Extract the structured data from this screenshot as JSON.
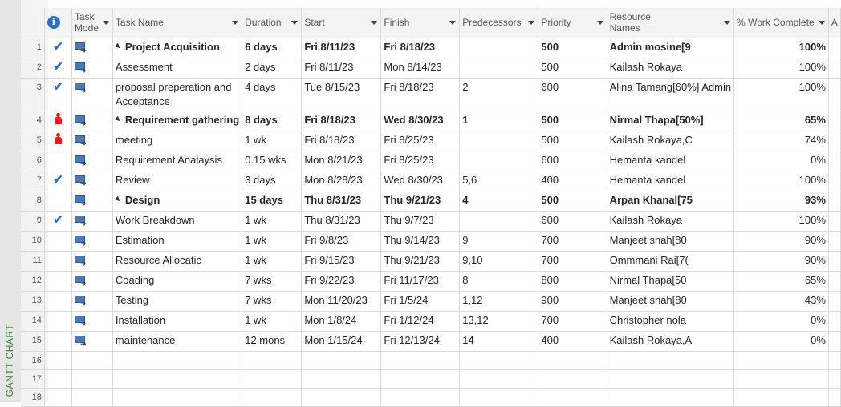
{
  "side_label": "GANTT CHART",
  "headers": {
    "indicator_icon": "info-icon",
    "mode": "Task Mode",
    "name": "Task Name",
    "duration": "Duration",
    "start": "Start",
    "finish": "Finish",
    "predecessors": "Predecessors",
    "priority": "Priority",
    "resources": "Resource Names",
    "work": "% Work Complete",
    "next": "A"
  },
  "rows": [
    {
      "id": "1",
      "indicator": "check",
      "name": "Project Acquisition",
      "level": 0,
      "summary": true,
      "duration": "6 days",
      "start": "Fri 8/11/23",
      "finish": "Fri 8/18/23",
      "pred": "",
      "priority": "500",
      "res": "Admin mosine[9",
      "work": "100%"
    },
    {
      "id": "2",
      "indicator": "check",
      "name": "Assessment",
      "level": 1,
      "summary": false,
      "duration": "2 days",
      "start": "Fri 8/11/23",
      "finish": "Mon 8/14/23",
      "pred": "",
      "priority": "500",
      "res": "Kailash Rokaya",
      "work": "100%"
    },
    {
      "id": "3",
      "indicator": "check",
      "name": "proposal preperation and Acceptance",
      "level": 1,
      "summary": false,
      "duration": "4 days",
      "start": "Tue 8/15/23",
      "finish": "Fri 8/18/23",
      "pred": "2",
      "priority": "600",
      "res": "Alina Tamang[60%] Admin",
      "work": "100%"
    },
    {
      "id": "4",
      "indicator": "person",
      "name": "Requirement gathering",
      "level": 0,
      "summary": true,
      "duration": "8 days",
      "start": "Fri 8/18/23",
      "finish": "Wed 8/30/23",
      "pred": "1",
      "priority": "500",
      "res": "Nirmal Thapa[50%]",
      "work": "65%"
    },
    {
      "id": "5",
      "indicator": "person",
      "name": "meeting",
      "level": 1,
      "summary": false,
      "duration": "1 wk",
      "start": "Fri 8/18/23",
      "finish": "Fri 8/25/23",
      "pred": "",
      "priority": "500",
      "res": "Kailash Rokaya,C",
      "work": "74%"
    },
    {
      "id": "6",
      "indicator": "",
      "name": "Requirement Analaysis",
      "level": 1,
      "summary": false,
      "duration": "0.15 wks",
      "start": "Mon 8/21/23",
      "finish": "Fri 8/25/23",
      "pred": "",
      "priority": "600",
      "res": "Hemanta kandel",
      "work": "0%"
    },
    {
      "id": "7",
      "indicator": "check",
      "name": "Review",
      "level": 1,
      "summary": false,
      "duration": "3 days",
      "start": "Mon 8/28/23",
      "finish": "Wed 8/30/23",
      "pred": "5,6",
      "priority": "400",
      "res": "Hemanta kandel",
      "work": "100%"
    },
    {
      "id": "8",
      "indicator": "",
      "name": "Design",
      "level": 0,
      "summary": true,
      "duration": "15 days",
      "start": "Thu 8/31/23",
      "finish": "Thu 9/21/23",
      "pred": "4",
      "priority": "500",
      "res": "Arpan Khanal[75",
      "work": "93%"
    },
    {
      "id": "9",
      "indicator": "check",
      "name": "Work Breakdown",
      "level": 1,
      "summary": false,
      "duration": "1 wk",
      "start": "Thu 8/31/23",
      "finish": "Thu 9/7/23",
      "pred": "",
      "priority": "600",
      "res": "Kailash Rokaya",
      "work": "100%"
    },
    {
      "id": "10",
      "indicator": "",
      "name": "Estimation",
      "level": 1,
      "summary": false,
      "duration": "1 wk",
      "start": "Fri 9/8/23",
      "finish": "Thu 9/14/23",
      "pred": "9",
      "priority": "700",
      "res": "Manjeet shah[80",
      "work": "90%"
    },
    {
      "id": "11",
      "indicator": "",
      "name": "Resource Allocatic",
      "level": 1,
      "summary": false,
      "duration": "1 wk",
      "start": "Fri 9/15/23",
      "finish": "Thu 9/21/23",
      "pred": "9,10",
      "priority": "700",
      "res": "Ommmani Rai[7(",
      "work": "90%"
    },
    {
      "id": "12",
      "indicator": "",
      "name": "Coading",
      "level": 0,
      "summary": false,
      "duration": "7 wks",
      "start": "Fri 9/22/23",
      "finish": "Fri 11/17/23",
      "pred": "8",
      "priority": "800",
      "res": "Nirmal Thapa[50",
      "work": "65%"
    },
    {
      "id": "13",
      "indicator": "",
      "name": "Testing",
      "level": 0,
      "summary": false,
      "duration": "7 wks",
      "start": "Mon 11/20/23",
      "finish": "Fri 1/5/24",
      "pred": "1,12",
      "priority": "900",
      "res": "Manjeet shah[80",
      "work": "43%"
    },
    {
      "id": "14",
      "indicator": "",
      "name": "Installation",
      "level": 0,
      "summary": false,
      "duration": "1 wk",
      "start": "Mon 1/8/24",
      "finish": "Fri 1/12/24",
      "pred": "13,12",
      "priority": "700",
      "res": "Christopher nola",
      "work": "0%"
    },
    {
      "id": "15",
      "indicator": "",
      "name": "maintenance",
      "level": 0,
      "summary": false,
      "duration": "12 mons",
      "start": "Mon 1/15/24",
      "finish": "Fri 12/13/24",
      "pred": "14",
      "priority": "400",
      "res": "Kailash Rokaya,A",
      "work": "0%"
    }
  ],
  "empty_rows": [
    "16",
    "17",
    "18"
  ]
}
